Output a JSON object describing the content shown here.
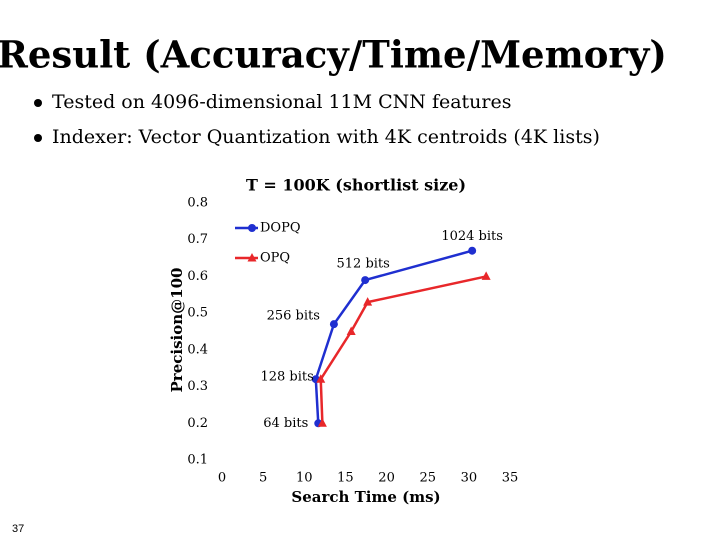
{
  "slide": {
    "title": "Result (Accuracy/Time/Memory)",
    "bullets": [
      "Tested on 4096-dimensional 11M CNN features",
      "Indexer: Vector Quantization with 4K centroids (4K lists)"
    ],
    "page_number": "37"
  },
  "chart_data": {
    "type": "line",
    "title": "T = 100K (shortlist size)",
    "x_label": "Search Time (ms)",
    "y_label": "Precision@100",
    "xlim": [
      0,
      35
    ],
    "xticks": [
      0,
      5,
      10,
      15,
      20,
      25,
      30,
      35
    ],
    "ylim": [
      0.1,
      0.8
    ],
    "yticks": [
      0.1,
      0.2,
      0.3,
      0.4,
      0.5,
      0.6,
      0.7,
      0.8
    ],
    "legend": "top-left",
    "annotations": [
      "64 bits",
      "128 bits",
      "256 bits",
      "512 bits",
      "1024 bits"
    ],
    "series": [
      {
        "name": "DOPQ",
        "color": "#1f2fd0",
        "marker": "circle",
        "x": [
          11.7,
          11.4,
          13.6,
          17.4,
          30.4
        ],
        "values": [
          0.2,
          0.32,
          0.47,
          0.59,
          0.67
        ]
      },
      {
        "name": "OPQ",
        "color": "#e8272a",
        "marker": "triangle",
        "x": [
          12.2,
          12.0,
          15.7,
          17.7,
          32.1
        ],
        "values": [
          0.2,
          0.32,
          0.45,
          0.53,
          0.6
        ]
      }
    ]
  }
}
